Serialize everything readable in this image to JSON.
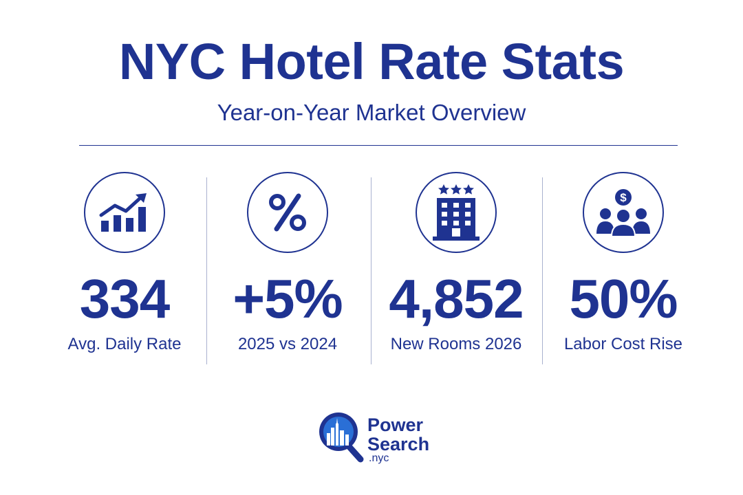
{
  "header": {
    "title": "NYC Hotel Rate Stats",
    "subtitle": "Year-on-Year Market Overview"
  },
  "stats": [
    {
      "icon": "chart-growth-icon",
      "value": "334",
      "label": "Avg. Daily Rate"
    },
    {
      "icon": "percent-icon",
      "value": "+5%",
      "label": "2025 vs 2024"
    },
    {
      "icon": "hotel-icon",
      "value": "4,852",
      "label": "New Rooms 2026"
    },
    {
      "icon": "labor-cost-icon",
      "value": "50%",
      "label": "Labor Cost Rise"
    }
  ],
  "logo": {
    "line1": "Power",
    "line2": "Search",
    "domain": ".nyc"
  },
  "colors": {
    "primary": "#1f3391",
    "divider": "#a9b1cf",
    "logo_blue": "#2a6fd6",
    "background": "#ffffff"
  }
}
